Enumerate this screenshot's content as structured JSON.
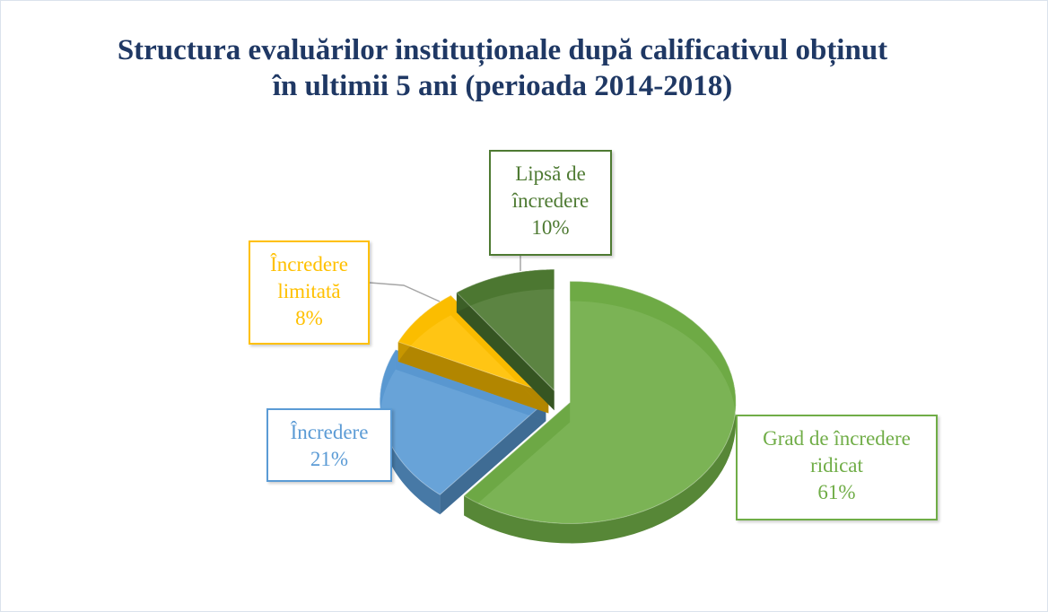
{
  "chart_data": {
    "type": "pie",
    "title": "Structura evaluărilor instituționale după calificativul obținut în ultimii 5 ani (perioada 2014-2018)",
    "categories": [
      "Grad de încredere ridicat",
      "Încredere",
      "Încredere limitată",
      "Lipsă de încredere"
    ],
    "values": [
      61,
      21,
      8,
      10
    ],
    "value_labels": [
      "61%",
      "21%",
      "8%",
      "10%"
    ],
    "colors": [
      "#70ad47",
      "#5b9bd5",
      "#ffc000",
      "#4e7a32"
    ]
  }
}
